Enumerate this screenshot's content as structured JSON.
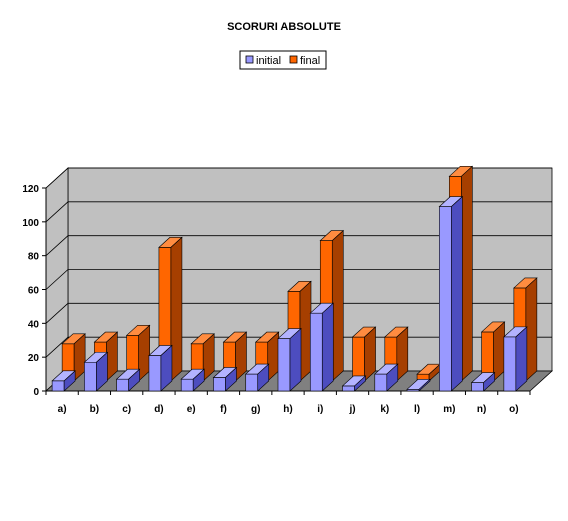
{
  "chart_data": {
    "type": "bar",
    "title": "SCORURI ABSOLUTE",
    "categories": [
      "a)",
      "b)",
      "c)",
      "d)",
      "e)",
      "f)",
      "g)",
      "h)",
      "i)",
      "j)",
      "k)",
      "l)",
      "m)",
      "n)",
      "o)"
    ],
    "series": [
      {
        "name": "initial",
        "values": [
          6,
          17,
          7,
          21,
          7,
          8,
          10,
          31,
          46,
          3,
          10,
          1,
          109,
          5,
          32
        ]
      },
      {
        "name": "final",
        "values": [
          22,
          23,
          27,
          79,
          22,
          23,
          23,
          53,
          83,
          26,
          26,
          4,
          121,
          29,
          55
        ]
      }
    ],
    "ylim": [
      0,
      120
    ],
    "yticks": [
      0,
      20,
      40,
      60,
      80,
      100,
      120
    ],
    "grid": true,
    "legend": "top-center",
    "view": "3d-clustered-column",
    "colors": {
      "initial_front": "#9999ff",
      "initial_top": "#b3b3ff",
      "initial_side": "#4d4dbf",
      "final_front": "#ff6600",
      "final_top": "#ff8c40",
      "final_side": "#a63f00",
      "wall": "#c0c0c0",
      "floor": "#808080",
      "grid": "#000000"
    }
  }
}
